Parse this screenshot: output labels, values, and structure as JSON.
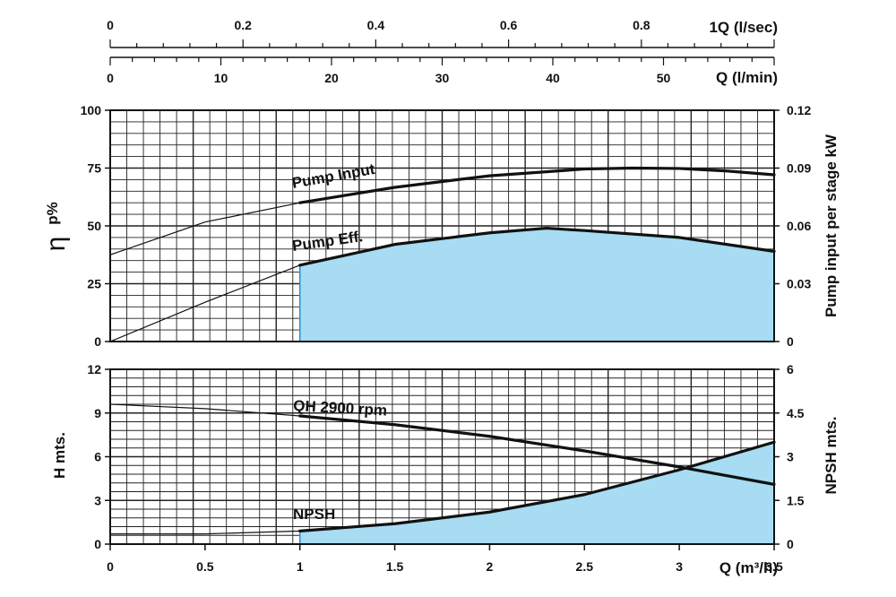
{
  "chart_data": [
    {
      "type": "line",
      "panel": "efficiency-and-power",
      "x_axis": {
        "label": "Q (m³/h)",
        "range": [
          0,
          3.5
        ],
        "ticks": [
          "0",
          "0.5",
          "1",
          "1.5",
          "2",
          "2.5",
          "3",
          "3.5"
        ]
      },
      "top_axis_1": {
        "label": "1Q (l/sec)",
        "range": [
          0,
          1
        ],
        "ticks": [
          "0",
          "0.2",
          "0.4",
          "0.6",
          "0.8"
        ]
      },
      "top_axis_2": {
        "label": "Q (l/min)",
        "range": [
          0,
          60
        ],
        "ticks": [
          "0",
          "10",
          "20",
          "30",
          "40",
          "50"
        ]
      },
      "y_left": {
        "label_symbol": "η",
        "label_sub": "p%",
        "range": [
          0,
          100
        ],
        "ticks": [
          "0",
          "25",
          "50",
          "75",
          "100"
        ]
      },
      "y_right": {
        "label": "Pump input per stage kW",
        "range": [
          0,
          0.12
        ],
        "ticks": [
          "0",
          "0.03",
          "0.06",
          "0.09",
          "0.12"
        ]
      },
      "grid": true,
      "series": [
        {
          "name": "Pump Input",
          "axis": "right",
          "operating_range": [
            1.0,
            3.5
          ],
          "x": [
            0,
            0.5,
            1.0,
            1.5,
            2.0,
            2.5,
            2.75,
            3.0,
            3.25,
            3.5
          ],
          "y": [
            0.045,
            0.062,
            0.072,
            0.08,
            0.086,
            0.0895,
            0.09,
            0.0898,
            0.0885,
            0.0865
          ]
        },
        {
          "name": "Pump Eff.",
          "axis": "left",
          "operating_range": [
            1.0,
            3.5
          ],
          "shaded": true,
          "x": [
            0,
            0.5,
            1.0,
            1.5,
            2.0,
            2.3,
            2.5,
            3.0,
            3.5
          ],
          "y": [
            0,
            17,
            33,
            42,
            47,
            49,
            48,
            45,
            39
          ]
        }
      ]
    },
    {
      "type": "line",
      "panel": "head-and-npsh",
      "x_axis": {
        "label": "Q (m³/h)",
        "range": [
          0,
          3.5
        ],
        "ticks": [
          "0",
          "0.5",
          "1",
          "1.5",
          "2",
          "2.5",
          "3",
          "3.5"
        ]
      },
      "y_left": {
        "label": "H mts.",
        "range": [
          0,
          12
        ],
        "ticks": [
          "0",
          "3",
          "6",
          "9",
          "12"
        ]
      },
      "y_right": {
        "label": "NPSH mts.",
        "range": [
          0,
          6
        ],
        "ticks": [
          "0",
          "1.5",
          "3",
          "4.5",
          "6"
        ]
      },
      "grid": true,
      "series": [
        {
          "name": "QH 2900 rpm",
          "axis": "left",
          "operating_range": [
            1.0,
            3.5
          ],
          "x": [
            0,
            0.5,
            1.0,
            1.5,
            2.0,
            2.5,
            3.0,
            3.5
          ],
          "y": [
            9.6,
            9.3,
            8.8,
            8.2,
            7.4,
            6.4,
            5.3,
            4.1
          ]
        },
        {
          "name": "NPSH",
          "axis": "right",
          "operating_range": [
            1.0,
            3.5
          ],
          "shaded": true,
          "x": [
            0,
            0.5,
            1.0,
            1.5,
            2.0,
            2.5,
            3.0,
            3.5
          ],
          "y": [
            0.35,
            0.35,
            0.45,
            0.7,
            1.1,
            1.7,
            2.55,
            3.5
          ]
        }
      ]
    }
  ]
}
